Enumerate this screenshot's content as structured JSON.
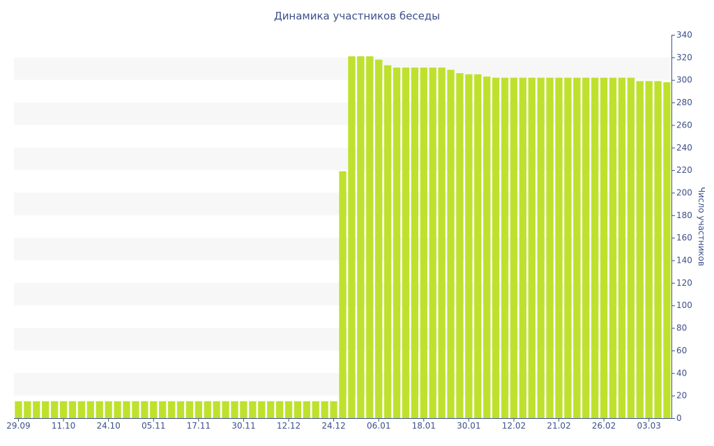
{
  "chart_data": {
    "type": "bar",
    "title": "Динамика участников беседы",
    "ylabel": "Число участников",
    "xlabel": "",
    "ylim": [
      0,
      340
    ],
    "yticks": [
      0,
      20,
      40,
      60,
      80,
      100,
      120,
      140,
      160,
      180,
      200,
      220,
      240,
      260,
      280,
      300,
      320,
      340
    ],
    "xtick_labels": [
      "29.09",
      "11.10",
      "24.10",
      "05.11",
      "17.11",
      "30.11",
      "12.12",
      "24.12",
      "06.01",
      "18.01",
      "30.01",
      "12.02",
      "21.02",
      "26.02",
      "03.03"
    ],
    "xtick_bar_index": [
      0,
      5,
      10,
      15,
      20,
      25,
      30,
      35,
      40,
      45,
      50,
      55,
      60,
      65,
      70
    ],
    "values": [
      15,
      15,
      15,
      15,
      15,
      15,
      15,
      15,
      15,
      15,
      15,
      15,
      15,
      15,
      15,
      15,
      15,
      15,
      15,
      15,
      15,
      15,
      15,
      15,
      15,
      15,
      15,
      15,
      15,
      15,
      15,
      15,
      15,
      15,
      15,
      15,
      219,
      321,
      321,
      321,
      318,
      313,
      311,
      311,
      311,
      311,
      311,
      311,
      309,
      306,
      305,
      305,
      303,
      302,
      302,
      302,
      302,
      302,
      302,
      302,
      302,
      302,
      302,
      302,
      302,
      302,
      302,
      302,
      302,
      299,
      299,
      299,
      298
    ],
    "grid": "alternating horizontal bands",
    "colors": {
      "bar": "#bfe12e",
      "band": "#f7f7f7",
      "text": "#3c4f8a",
      "axis": "#3c4f8a"
    }
  }
}
